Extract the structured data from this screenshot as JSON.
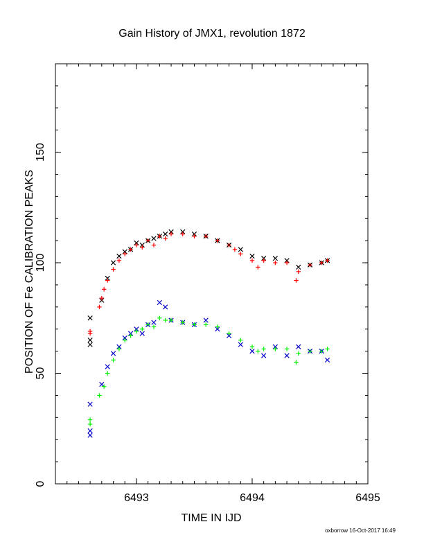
{
  "chart_data": {
    "type": "scatter",
    "title": "Gain History of JMX1, revolution 1872",
    "xlabel": "TIME IN IJD",
    "ylabel": "POSITION OF Fe CALIBRATION PEAKS",
    "xlim": [
      6492.3,
      6495.0
    ],
    "ylim": [
      0,
      190
    ],
    "x_ticks": [
      6493,
      6494,
      6495
    ],
    "y_ticks": [
      0,
      50,
      100,
      150
    ],
    "x_ticks_labeled": [
      "6493",
      "6494",
      "6495"
    ],
    "y_ticks_labeled": [
      "0",
      "50",
      "100",
      "150"
    ],
    "footer": "oxborrow 16-Oct-2017 16:49",
    "grid": false,
    "series": [
      {
        "marker": "x",
        "color": "#000000",
        "points": [
          [
            6492.6,
            63
          ],
          [
            6492.6,
            65
          ],
          [
            6492.6,
            75
          ],
          [
            6492.7,
            83
          ],
          [
            6492.75,
            93
          ],
          [
            6492.8,
            100
          ],
          [
            6492.85,
            103
          ],
          [
            6492.9,
            105
          ],
          [
            6492.95,
            106
          ],
          [
            6493.0,
            109
          ],
          [
            6493.05,
            108
          ],
          [
            6493.1,
            110
          ],
          [
            6493.15,
            111
          ],
          [
            6493.2,
            112
          ],
          [
            6493.25,
            113
          ],
          [
            6493.3,
            114
          ],
          [
            6493.4,
            114
          ],
          [
            6493.5,
            113
          ],
          [
            6493.6,
            112
          ],
          [
            6493.7,
            110
          ],
          [
            6493.8,
            108
          ],
          [
            6493.9,
            106
          ],
          [
            6494.0,
            103
          ],
          [
            6494.1,
            102
          ],
          [
            6494.2,
            102
          ],
          [
            6494.3,
            101
          ],
          [
            6494.4,
            98
          ],
          [
            6494.5,
            99
          ],
          [
            6494.6,
            100
          ],
          [
            6494.65,
            101
          ]
        ]
      },
      {
        "marker": "+",
        "color": "#ff0000",
        "points": [
          [
            6492.6,
            68
          ],
          [
            6492.6,
            69
          ],
          [
            6492.68,
            80
          ],
          [
            6492.7,
            84
          ],
          [
            6492.72,
            88
          ],
          [
            6492.75,
            92
          ],
          [
            6492.8,
            97
          ],
          [
            6492.85,
            101
          ],
          [
            6492.9,
            104
          ],
          [
            6492.95,
            106
          ],
          [
            6493.0,
            108
          ],
          [
            6493.05,
            107
          ],
          [
            6493.1,
            110
          ],
          [
            6493.15,
            108
          ],
          [
            6493.2,
            112
          ],
          [
            6493.25,
            111
          ],
          [
            6493.3,
            113
          ],
          [
            6493.4,
            113
          ],
          [
            6493.5,
            112
          ],
          [
            6493.6,
            112
          ],
          [
            6493.7,
            110
          ],
          [
            6493.8,
            108
          ],
          [
            6493.85,
            106
          ],
          [
            6493.9,
            104
          ],
          [
            6494.0,
            101
          ],
          [
            6494.05,
            98
          ],
          [
            6494.1,
            101
          ],
          [
            6494.2,
            100
          ],
          [
            6494.3,
            100
          ],
          [
            6494.4,
            96
          ],
          [
            6494.38,
            92
          ],
          [
            6494.5,
            99
          ],
          [
            6494.6,
            100
          ],
          [
            6494.65,
            101
          ]
        ]
      },
      {
        "marker": "x",
        "color": "#0000cc",
        "points": [
          [
            6492.6,
            22
          ],
          [
            6492.6,
            24
          ],
          [
            6492.6,
            36
          ],
          [
            6492.7,
            45
          ],
          [
            6492.75,
            53
          ],
          [
            6492.8,
            59
          ],
          [
            6492.85,
            62
          ],
          [
            6492.9,
            66
          ],
          [
            6492.95,
            68
          ],
          [
            6493.0,
            70
          ],
          [
            6493.05,
            68
          ],
          [
            6493.1,
            72
          ],
          [
            6493.15,
            73
          ],
          [
            6493.2,
            82
          ],
          [
            6493.25,
            80
          ],
          [
            6493.3,
            74
          ],
          [
            6493.4,
            73
          ],
          [
            6493.5,
            72
          ],
          [
            6493.6,
            74
          ],
          [
            6493.7,
            70
          ],
          [
            6493.8,
            67
          ],
          [
            6493.9,
            63
          ],
          [
            6494.0,
            60
          ],
          [
            6494.1,
            58
          ],
          [
            6494.2,
            62
          ],
          [
            6494.3,
            58
          ],
          [
            6494.4,
            62
          ],
          [
            6494.5,
            60
          ],
          [
            6494.6,
            60
          ],
          [
            6494.65,
            56
          ]
        ]
      },
      {
        "marker": "+",
        "color": "#00ee00",
        "points": [
          [
            6492.6,
            27
          ],
          [
            6492.6,
            29
          ],
          [
            6492.68,
            40
          ],
          [
            6492.72,
            44
          ],
          [
            6492.75,
            50
          ],
          [
            6492.8,
            56
          ],
          [
            6492.85,
            61
          ],
          [
            6492.9,
            65
          ],
          [
            6492.95,
            67
          ],
          [
            6493.0,
            69
          ],
          [
            6493.05,
            70
          ],
          [
            6493.1,
            72
          ],
          [
            6493.15,
            71
          ],
          [
            6493.2,
            75
          ],
          [
            6493.25,
            74
          ],
          [
            6493.3,
            74
          ],
          [
            6493.4,
            73
          ],
          [
            6493.5,
            72
          ],
          [
            6493.6,
            72
          ],
          [
            6493.7,
            71
          ],
          [
            6493.8,
            68
          ],
          [
            6493.9,
            65
          ],
          [
            6494.0,
            62
          ],
          [
            6494.05,
            60
          ],
          [
            6494.1,
            61
          ],
          [
            6494.2,
            61
          ],
          [
            6494.3,
            61
          ],
          [
            6494.4,
            59
          ],
          [
            6494.38,
            55
          ],
          [
            6494.5,
            60
          ],
          [
            6494.6,
            60
          ],
          [
            6494.65,
            61
          ]
        ]
      }
    ]
  }
}
